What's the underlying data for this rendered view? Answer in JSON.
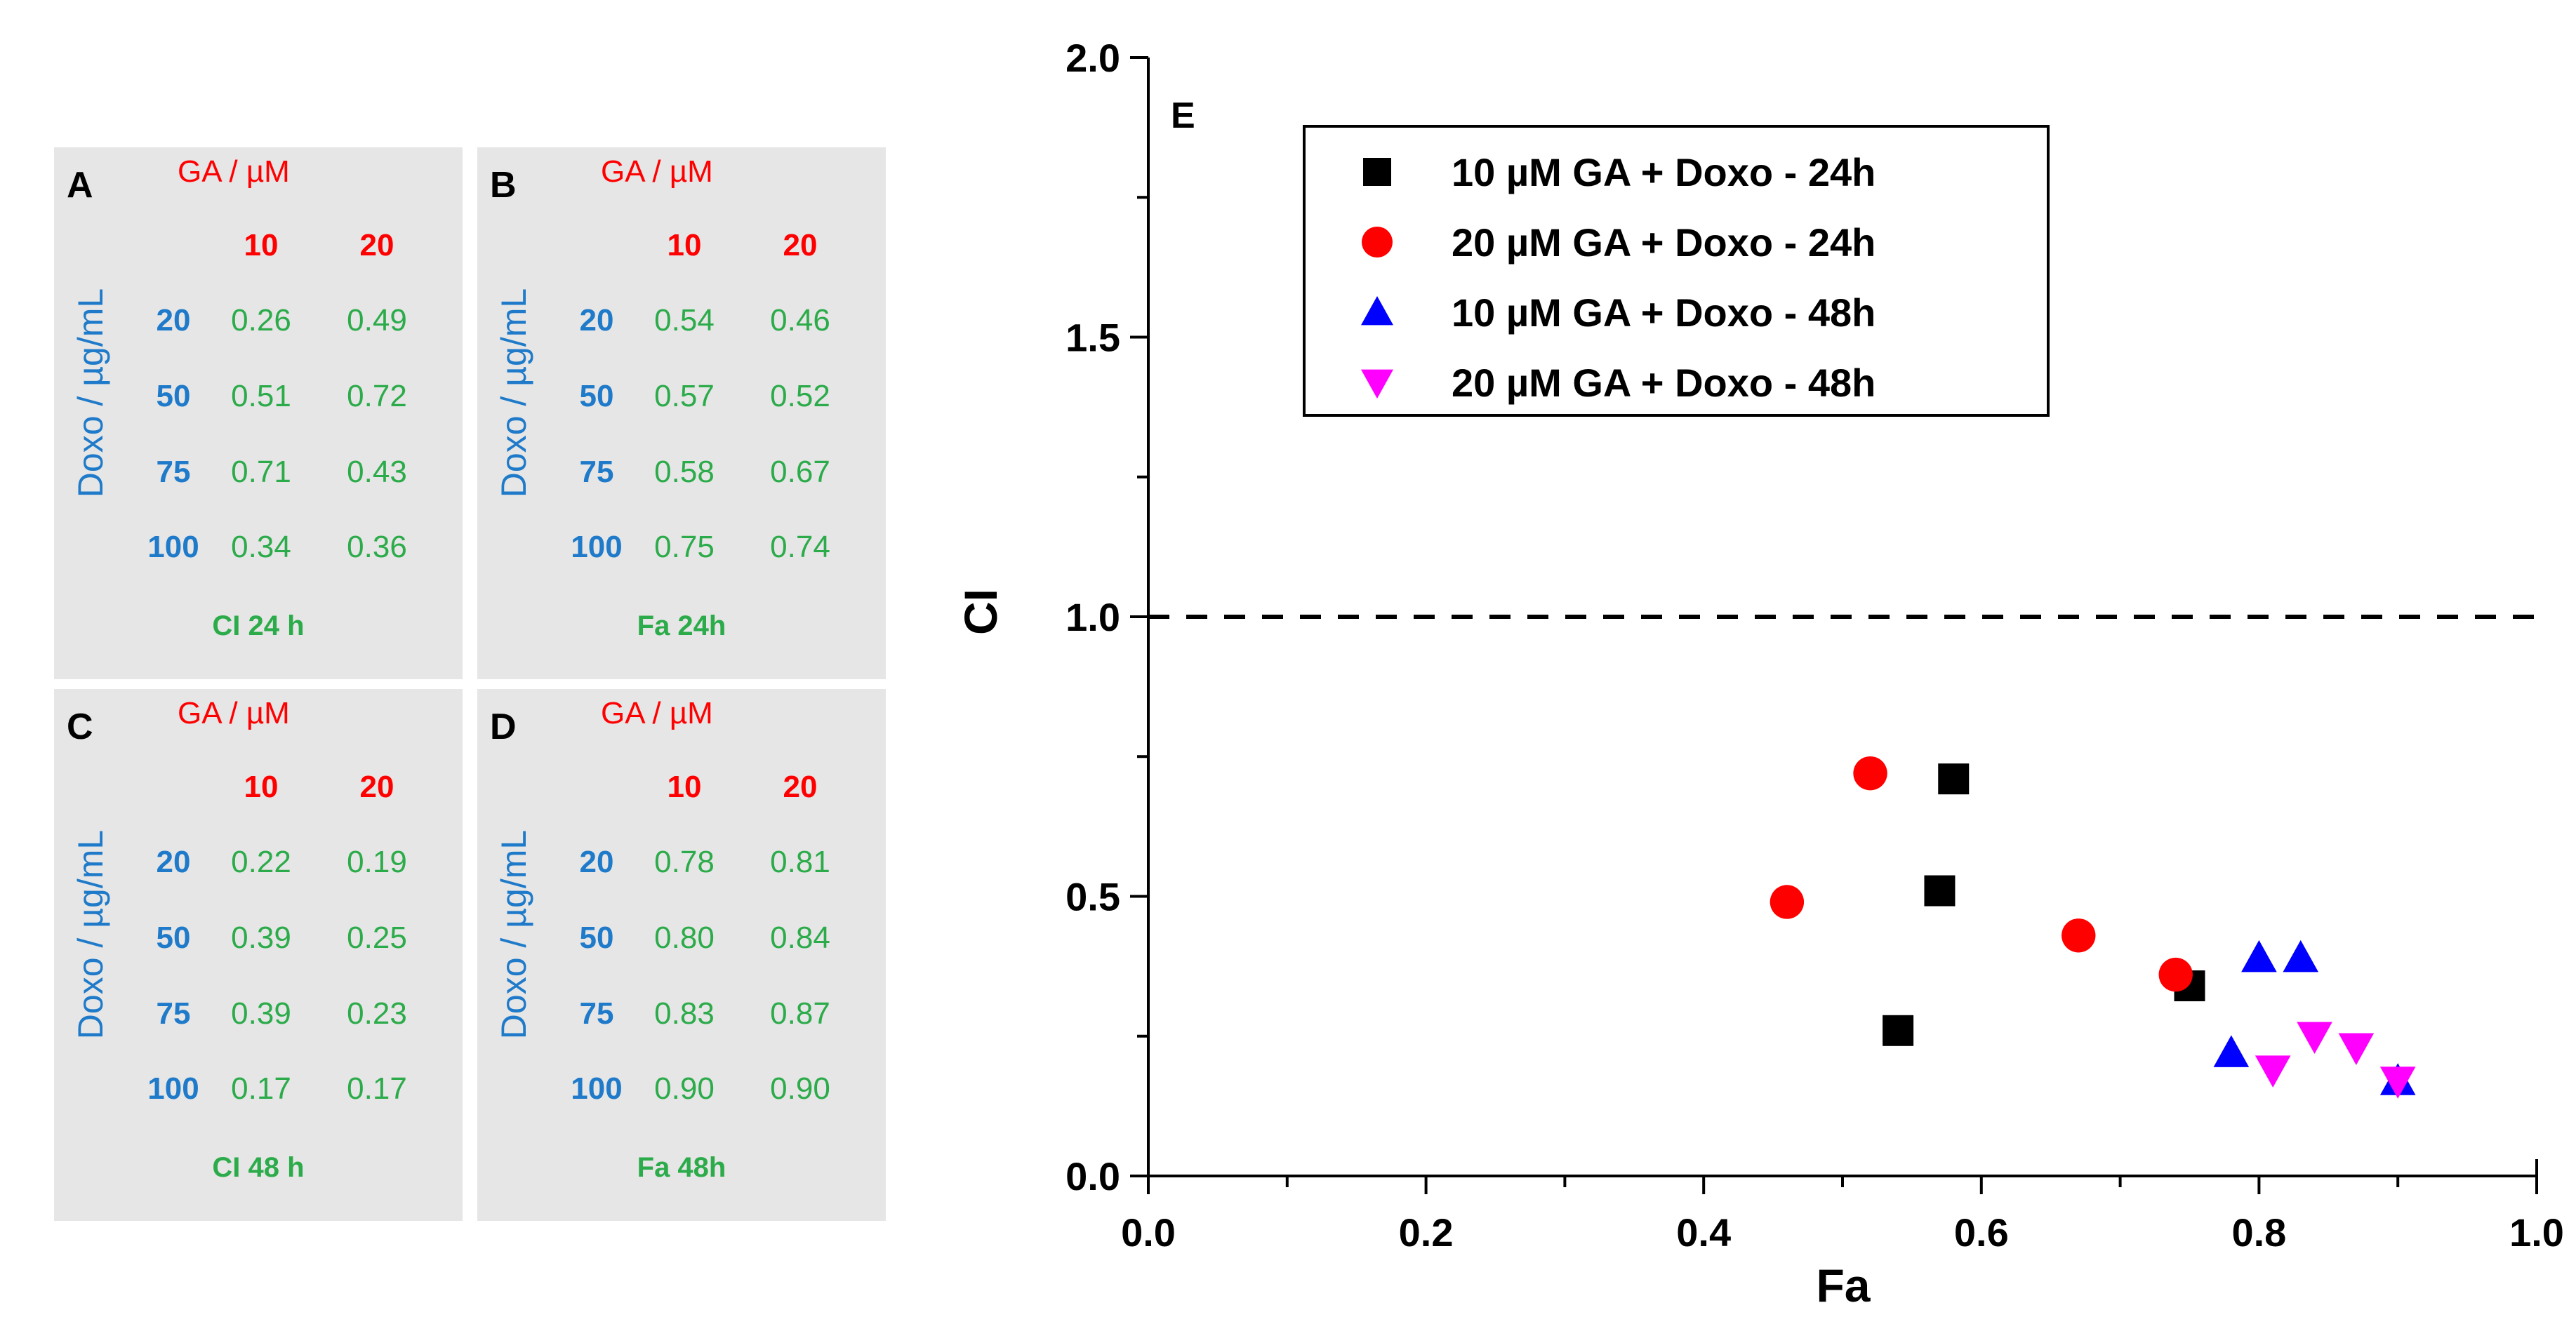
{
  "panels": [
    {
      "letter": "A",
      "ga_header": "GA  /  µM",
      "doxo_label": "Doxo  /  µg/mL",
      "col_heads": [
        "10",
        "20"
      ],
      "rows": [
        {
          "dose": "20",
          "c1": "0.26",
          "c2": "0.49"
        },
        {
          "dose": "50",
          "c1": "0.51",
          "c2": "0.72"
        },
        {
          "dose": "75",
          "c1": "0.71",
          "c2": "0.43"
        },
        {
          "dose": "100",
          "c1": "0.34",
          "c2": "0.36"
        }
      ],
      "footer": "CI 24 h"
    },
    {
      "letter": "B",
      "ga_header": "GA  /  µM",
      "doxo_label": "Doxo  /  µg/mL",
      "col_heads": [
        "10",
        "20"
      ],
      "rows": [
        {
          "dose": "20",
          "c1": "0.54",
          "c2": "0.46"
        },
        {
          "dose": "50",
          "c1": "0.57",
          "c2": "0.52"
        },
        {
          "dose": "75",
          "c1": "0.58",
          "c2": "0.67"
        },
        {
          "dose": "100",
          "c1": "0.75",
          "c2": "0.74"
        }
      ],
      "footer": "Fa 24h"
    },
    {
      "letter": "C",
      "ga_header": "GA  /  µM",
      "doxo_label": "Doxo  /  µg/mL",
      "col_heads": [
        "10",
        "20"
      ],
      "rows": [
        {
          "dose": "20",
          "c1": "0.22",
          "c2": "0.19"
        },
        {
          "dose": "50",
          "c1": "0.39",
          "c2": "0.25"
        },
        {
          "dose": "75",
          "c1": "0.39",
          "c2": "0.23"
        },
        {
          "dose": "100",
          "c1": "0.17",
          "c2": "0.17"
        }
      ],
      "footer": "CI 48 h"
    },
    {
      "letter": "D",
      "ga_header": "GA  /  µM",
      "doxo_label": "Doxo  /  µg/mL",
      "col_heads": [
        "10",
        "20"
      ],
      "rows": [
        {
          "dose": "20",
          "c1": "0.78",
          "c2": "0.81"
        },
        {
          "dose": "50",
          "c1": "0.80",
          "c2": "0.84"
        },
        {
          "dose": "75",
          "c1": "0.83",
          "c2": "0.87"
        },
        {
          "dose": "100",
          "c1": "0.90",
          "c2": "0.90"
        }
      ],
      "footer": "Fa 48h"
    }
  ],
  "chart_data": {
    "type": "scatter",
    "panel_label": "E",
    "xlabel": "Fa",
    "ylabel": "CI",
    "xlim": [
      0.0,
      1.0
    ],
    "ylim": [
      0.0,
      2.0
    ],
    "xticks": [
      "0.0",
      "0.2",
      "0.4",
      "0.6",
      "0.8",
      "1.0"
    ],
    "yticks": [
      "0.0",
      "0.5",
      "1.0",
      "1.5",
      "2.0"
    ],
    "reference_line": {
      "y": 1.0,
      "style": "dashed"
    },
    "legend_position": "top-left",
    "series": [
      {
        "name": "10 µM GA + Doxo - 24h",
        "marker": "square",
        "color": "#000000",
        "points": [
          [
            0.54,
            0.26
          ],
          [
            0.57,
            0.51
          ],
          [
            0.58,
            0.71
          ],
          [
            0.75,
            0.34
          ]
        ]
      },
      {
        "name": "20 µM GA + Doxo - 24h",
        "marker": "circle",
        "color": "#ff0000",
        "points": [
          [
            0.46,
            0.49
          ],
          [
            0.52,
            0.72
          ],
          [
            0.67,
            0.43
          ],
          [
            0.74,
            0.36
          ]
        ]
      },
      {
        "name": "10 µM GA + Doxo - 48h",
        "marker": "triangle-up",
        "color": "#0000ff",
        "points": [
          [
            0.78,
            0.22
          ],
          [
            0.8,
            0.39
          ],
          [
            0.83,
            0.39
          ],
          [
            0.9,
            0.17
          ]
        ]
      },
      {
        "name": "20 µM GA + Doxo - 48h",
        "marker": "triangle-down",
        "color": "#ff00ff",
        "points": [
          [
            0.81,
            0.19
          ],
          [
            0.84,
            0.25
          ],
          [
            0.87,
            0.23
          ],
          [
            0.9,
            0.17
          ]
        ]
      }
    ]
  }
}
